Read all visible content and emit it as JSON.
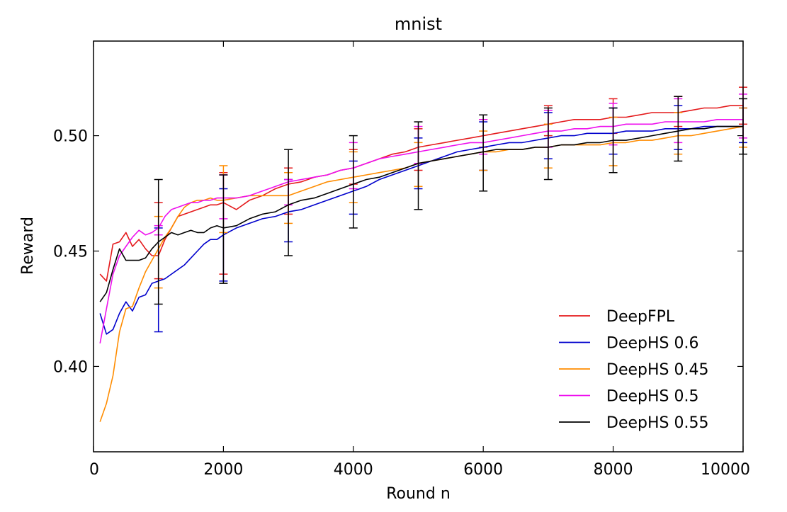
{
  "chart_data": {
    "type": "line",
    "title": "mnist",
    "xlabel": "Round n",
    "ylabel": "Reward",
    "xlim": [
      0,
      10000
    ],
    "ylim": [
      0.363,
      0.541
    ],
    "xticks": [
      0,
      2000,
      4000,
      6000,
      8000,
      10000
    ],
    "xtick_labels": [
      "0",
      "2000",
      "4000",
      "6000",
      "8000",
      "10000"
    ],
    "yticks": [
      0.4,
      0.45,
      0.5
    ],
    "ytick_labels": [
      "0.40",
      "0.45",
      "0.50"
    ],
    "grid": false,
    "legend_position": "bottom-right",
    "series": [
      {
        "name": "DeepFPL",
        "color": "#e41a1c",
        "x": [
          100,
          200,
          300,
          400,
          500,
          600,
          700,
          800,
          900,
          1000,
          1100,
          1200,
          1300,
          1400,
          1500,
          1600,
          1700,
          1800,
          1900,
          2000,
          2200,
          2400,
          2600,
          2800,
          3000,
          3200,
          3400,
          3600,
          3800,
          4000,
          4200,
          4400,
          4600,
          4800,
          5000,
          5200,
          5400,
          5600,
          5800,
          6000,
          6200,
          6400,
          6600,
          6800,
          7000,
          7200,
          7400,
          7600,
          7800,
          8000,
          8200,
          8400,
          8600,
          8800,
          9000,
          9200,
          9400,
          9600,
          9800,
          10000
        ],
        "y": [
          0.44,
          0.437,
          0.453,
          0.454,
          0.458,
          0.452,
          0.455,
          0.451,
          0.448,
          0.448,
          0.455,
          0.46,
          0.465,
          0.466,
          0.467,
          0.468,
          0.469,
          0.47,
          0.47,
          0.471,
          0.468,
          0.472,
          0.474,
          0.477,
          0.479,
          0.48,
          0.482,
          0.483,
          0.485,
          0.486,
          0.488,
          0.49,
          0.492,
          0.493,
          0.495,
          0.496,
          0.497,
          0.498,
          0.499,
          0.5,
          0.501,
          0.502,
          0.503,
          0.504,
          0.505,
          0.506,
          0.507,
          0.507,
          0.507,
          0.508,
          0.508,
          0.509,
          0.51,
          0.51,
          0.51,
          0.511,
          0.512,
          0.512,
          0.513,
          0.513
        ],
        "err_x": [
          1000,
          2000,
          3000,
          4000,
          5000,
          6000,
          7000,
          8000,
          9000,
          10000
        ],
        "err_lo": [
          0.438,
          0.44,
          0.466,
          0.479,
          0.485,
          0.495,
          0.5,
          0.501,
          0.504,
          0.505
        ],
        "err_hi": [
          0.471,
          0.484,
          0.486,
          0.494,
          0.503,
          0.507,
          0.513,
          0.516,
          0.517,
          0.521
        ]
      },
      {
        "name": "DeepHS 0.6",
        "color": "#0000cc",
        "x": [
          100,
          200,
          300,
          400,
          500,
          600,
          700,
          800,
          900,
          1000,
          1100,
          1200,
          1300,
          1400,
          1500,
          1600,
          1700,
          1800,
          1900,
          2000,
          2200,
          2400,
          2600,
          2800,
          3000,
          3200,
          3400,
          3600,
          3800,
          4000,
          4200,
          4400,
          4600,
          4800,
          5000,
          5200,
          5400,
          5600,
          5800,
          6000,
          6200,
          6400,
          6600,
          6800,
          7000,
          7200,
          7400,
          7600,
          7800,
          8000,
          8200,
          8400,
          8600,
          8800,
          9000,
          9200,
          9400,
          9600,
          9800,
          10000
        ],
        "y": [
          0.423,
          0.414,
          0.416,
          0.423,
          0.428,
          0.424,
          0.43,
          0.431,
          0.436,
          0.437,
          0.438,
          0.44,
          0.442,
          0.444,
          0.447,
          0.45,
          0.453,
          0.455,
          0.455,
          0.457,
          0.46,
          0.462,
          0.464,
          0.465,
          0.467,
          0.468,
          0.47,
          0.472,
          0.474,
          0.476,
          0.478,
          0.481,
          0.483,
          0.485,
          0.487,
          0.489,
          0.491,
          0.493,
          0.494,
          0.495,
          0.496,
          0.497,
          0.497,
          0.498,
          0.499,
          0.5,
          0.5,
          0.501,
          0.501,
          0.501,
          0.502,
          0.502,
          0.502,
          0.503,
          0.503,
          0.503,
          0.504,
          0.504,
          0.504,
          0.504
        ],
        "err_x": [
          1000,
          2000,
          3000,
          4000,
          5000,
          6000,
          7000,
          8000,
          9000,
          10000
        ],
        "err_lo": [
          0.415,
          0.437,
          0.454,
          0.466,
          0.477,
          0.485,
          0.49,
          0.492,
          0.494,
          0.497
        ],
        "err_hi": [
          0.46,
          0.477,
          0.481,
          0.489,
          0.499,
          0.506,
          0.51,
          0.512,
          0.513,
          0.512
        ]
      },
      {
        "name": "DeepHS 0.45",
        "color": "#ff8c00",
        "x": [
          100,
          200,
          300,
          400,
          500,
          600,
          700,
          800,
          900,
          1000,
          1100,
          1200,
          1300,
          1400,
          1500,
          1600,
          1700,
          1800,
          1900,
          2000,
          2200,
          2400,
          2600,
          2800,
          3000,
          3200,
          3400,
          3600,
          3800,
          4000,
          4200,
          4400,
          4600,
          4800,
          5000,
          5200,
          5400,
          5600,
          5800,
          6000,
          6200,
          6400,
          6600,
          6800,
          7000,
          7200,
          7400,
          7600,
          7800,
          8000,
          8200,
          8400,
          8600,
          8800,
          9000,
          9200,
          9400,
          9600,
          9800,
          10000
        ],
        "y": [
          0.376,
          0.384,
          0.396,
          0.415,
          0.425,
          0.426,
          0.434,
          0.441,
          0.446,
          0.451,
          0.456,
          0.46,
          0.465,
          0.469,
          0.471,
          0.472,
          0.472,
          0.473,
          0.472,
          0.472,
          0.473,
          0.474,
          0.474,
          0.474,
          0.474,
          0.476,
          0.478,
          0.48,
          0.481,
          0.482,
          0.483,
          0.484,
          0.485,
          0.486,
          0.488,
          0.489,
          0.49,
          0.491,
          0.492,
          0.493,
          0.493,
          0.494,
          0.494,
          0.495,
          0.495,
          0.496,
          0.496,
          0.496,
          0.496,
          0.497,
          0.497,
          0.498,
          0.498,
          0.499,
          0.5,
          0.5,
          0.501,
          0.502,
          0.503,
          0.504
        ],
        "err_x": [
          1000,
          2000,
          3000,
          4000,
          5000,
          6000,
          7000,
          8000,
          9000,
          10000
        ],
        "err_lo": [
          0.434,
          0.458,
          0.462,
          0.471,
          0.478,
          0.485,
          0.486,
          0.487,
          0.492,
          0.495
        ],
        "err_hi": [
          0.465,
          0.487,
          0.484,
          0.493,
          0.497,
          0.502,
          0.505,
          0.508,
          0.51,
          0.512
        ]
      },
      {
        "name": "DeepHS 0.5",
        "color": "#ee10ee",
        "x": [
          100,
          200,
          300,
          400,
          500,
          600,
          700,
          800,
          900,
          1000,
          1100,
          1200,
          1300,
          1400,
          1500,
          1600,
          1700,
          1800,
          1900,
          2000,
          2200,
          2400,
          2600,
          2800,
          3000,
          3200,
          3400,
          3600,
          3800,
          4000,
          4200,
          4400,
          4600,
          4800,
          5000,
          5200,
          5400,
          5600,
          5800,
          6000,
          6200,
          6400,
          6600,
          6800,
          7000,
          7200,
          7400,
          7600,
          7800,
          8000,
          8200,
          8400,
          8600,
          8800,
          9000,
          9200,
          9400,
          9600,
          9800,
          10000
        ],
        "y": [
          0.41,
          0.425,
          0.44,
          0.448,
          0.452,
          0.456,
          0.459,
          0.457,
          0.458,
          0.46,
          0.465,
          0.468,
          0.469,
          0.47,
          0.471,
          0.471,
          0.472,
          0.472,
          0.473,
          0.473,
          0.473,
          0.474,
          0.476,
          0.478,
          0.48,
          0.481,
          0.482,
          0.483,
          0.485,
          0.486,
          0.488,
          0.49,
          0.491,
          0.492,
          0.493,
          0.494,
          0.495,
          0.496,
          0.497,
          0.497,
          0.498,
          0.499,
          0.5,
          0.501,
          0.502,
          0.502,
          0.503,
          0.503,
          0.504,
          0.504,
          0.505,
          0.505,
          0.505,
          0.506,
          0.506,
          0.506,
          0.506,
          0.507,
          0.507,
          0.507
        ],
        "err_x": [
          1000,
          2000,
          3000,
          4000,
          5000,
          6000,
          7000,
          8000,
          9000,
          10000
        ],
        "err_lo": [
          0.457,
          0.464,
          0.47,
          0.477,
          0.488,
          0.492,
          0.495,
          0.496,
          0.497,
          0.499
        ],
        "err_hi": [
          0.461,
          0.483,
          0.481,
          0.497,
          0.504,
          0.507,
          0.511,
          0.514,
          0.516,
          0.518
        ]
      },
      {
        "name": "DeepHS 0.55",
        "color": "#000000",
        "x": [
          100,
          200,
          300,
          400,
          500,
          600,
          700,
          800,
          900,
          1000,
          1100,
          1200,
          1300,
          1400,
          1500,
          1600,
          1700,
          1800,
          1900,
          2000,
          2200,
          2400,
          2600,
          2800,
          3000,
          3200,
          3400,
          3600,
          3800,
          4000,
          4200,
          4400,
          4600,
          4800,
          5000,
          5200,
          5400,
          5600,
          5800,
          6000,
          6200,
          6400,
          6600,
          6800,
          7000,
          7200,
          7400,
          7600,
          7800,
          8000,
          8200,
          8400,
          8600,
          8800,
          9000,
          9200,
          9400,
          9600,
          9800,
          10000
        ],
        "y": [
          0.428,
          0.432,
          0.442,
          0.451,
          0.446,
          0.446,
          0.446,
          0.447,
          0.451,
          0.454,
          0.456,
          0.458,
          0.457,
          0.458,
          0.459,
          0.458,
          0.458,
          0.46,
          0.461,
          0.46,
          0.461,
          0.464,
          0.466,
          0.467,
          0.47,
          0.472,
          0.473,
          0.475,
          0.477,
          0.479,
          0.481,
          0.482,
          0.484,
          0.486,
          0.488,
          0.489,
          0.49,
          0.491,
          0.492,
          0.493,
          0.494,
          0.494,
          0.494,
          0.495,
          0.495,
          0.496,
          0.496,
          0.497,
          0.497,
          0.498,
          0.498,
          0.499,
          0.5,
          0.501,
          0.502,
          0.503,
          0.503,
          0.504,
          0.504,
          0.504
        ],
        "err_x": [
          1000,
          2000,
          3000,
          4000,
          5000,
          6000,
          7000,
          8000,
          9000,
          10000
        ],
        "err_lo": [
          0.427,
          0.436,
          0.448,
          0.46,
          0.468,
          0.476,
          0.481,
          0.484,
          0.489,
          0.492
        ],
        "err_hi": [
          0.481,
          0.483,
          0.494,
          0.5,
          0.506,
          0.509,
          0.512,
          0.512,
          0.517,
          0.516
        ]
      }
    ]
  }
}
